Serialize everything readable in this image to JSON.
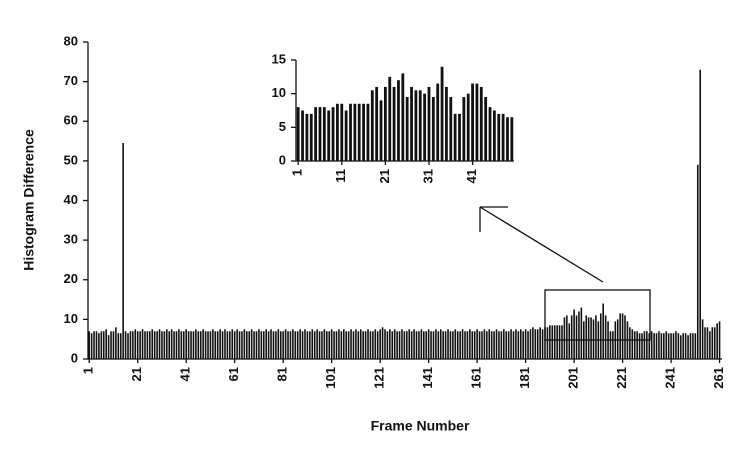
{
  "chart_data": [
    {
      "type": "bar",
      "xlabel": "Frame Number",
      "ylabel": "Histogram Difference",
      "color": "#111111",
      "xlim": [
        0.5,
        262
      ],
      "ylim": [
        0,
        80
      ],
      "xticks": [
        1,
        21,
        41,
        61,
        81,
        101,
        121,
        141,
        161,
        181,
        201,
        221,
        241,
        261
      ],
      "yticks": [
        0,
        10,
        20,
        30,
        40,
        50,
        60,
        70,
        80
      ],
      "x": [
        1,
        2,
        3,
        4,
        5,
        6,
        7,
        8,
        9,
        10,
        11,
        12,
        13,
        14,
        15,
        16,
        17,
        18,
        19,
        20,
        21,
        22,
        23,
        24,
        25,
        26,
        27,
        28,
        29,
        30,
        31,
        32,
        33,
        34,
        35,
        36,
        37,
        38,
        39,
        40,
        41,
        42,
        43,
        44,
        45,
        46,
        47,
        48,
        49,
        50,
        51,
        52,
        53,
        54,
        55,
        56,
        57,
        58,
        59,
        60,
        61,
        62,
        63,
        64,
        65,
        66,
        67,
        68,
        69,
        70,
        71,
        72,
        73,
        74,
        75,
        76,
        77,
        78,
        79,
        80,
        81,
        82,
        83,
        84,
        85,
        86,
        87,
        88,
        89,
        90,
        91,
        92,
        93,
        94,
        95,
        96,
        97,
        98,
        99,
        100,
        101,
        102,
        103,
        104,
        105,
        106,
        107,
        108,
        109,
        110,
        111,
        112,
        113,
        114,
        115,
        116,
        117,
        118,
        119,
        120,
        121,
        122,
        123,
        124,
        125,
        126,
        127,
        128,
        129,
        130,
        131,
        132,
        133,
        134,
        135,
        136,
        137,
        138,
        139,
        140,
        141,
        142,
        143,
        144,
        145,
        146,
        147,
        148,
        149,
        150,
        151,
        152,
        153,
        154,
        155,
        156,
        157,
        158,
        159,
        160,
        161,
        162,
        163,
        164,
        165,
        166,
        167,
        168,
        169,
        170,
        171,
        172,
        173,
        174,
        175,
        176,
        177,
        178,
        179,
        180,
        181,
        182,
        183,
        184,
        185,
        186,
        187,
        188,
        189,
        190,
        191,
        192,
        193,
        194,
        195,
        196,
        197,
        198,
        199,
        200,
        201,
        202,
        203,
        204,
        205,
        206,
        207,
        208,
        209,
        210,
        211,
        212,
        213,
        214,
        215,
        216,
        217,
        218,
        219,
        220,
        221,
        222,
        223,
        224,
        225,
        226,
        227,
        228,
        229,
        230,
        231,
        232,
        233,
        234,
        235,
        236,
        237,
        238,
        239,
        240,
        241,
        242,
        243,
        244,
        245,
        246,
        247,
        248,
        249,
        250,
        251,
        252,
        253,
        254,
        255,
        256,
        257,
        258,
        259,
        260,
        261
      ],
      "values": [
        7,
        6.5,
        7,
        7,
        6.5,
        7,
        7,
        7.5,
        6,
        7,
        7,
        8,
        6.5,
        6.5,
        54.5,
        7,
        6.5,
        7,
        7,
        7.5,
        7,
        7,
        7.5,
        7,
        7,
        7,
        7.5,
        7,
        7,
        7.5,
        7,
        7,
        7.5,
        7,
        7.5,
        7,
        7,
        7.5,
        7,
        7,
        7.5,
        7,
        7,
        7,
        7.5,
        7,
        7,
        7.5,
        7,
        7,
        7,
        7.5,
        7,
        7,
        7.5,
        7,
        7.5,
        7,
        7,
        7.5,
        7,
        7.5,
        7,
        7,
        7.5,
        7,
        7,
        7.5,
        7,
        7,
        7.5,
        7,
        7,
        7.5,
        7,
        7.5,
        7,
        7,
        7.5,
        7,
        7,
        7.5,
        7,
        7,
        7.5,
        7,
        7,
        7.5,
        7,
        7.5,
        7,
        7,
        7.5,
        7,
        7.5,
        7,
        7,
        7.5,
        7,
        7,
        7.5,
        7,
        7,
        7.5,
        7,
        7.5,
        7,
        7,
        7.5,
        7,
        7.5,
        7,
        7.5,
        7,
        7,
        7.5,
        7,
        7,
        7.5,
        7,
        7.5,
        8,
        7.5,
        7,
        7.5,
        7,
        7.5,
        7,
        7,
        7.5,
        7,
        7,
        7.5,
        7,
        7.5,
        7,
        7,
        7.5,
        7,
        7,
        7.5,
        7,
        7,
        7.5,
        7,
        7.5,
        7,
        7,
        7.5,
        7,
        7,
        7.5,
        7,
        7,
        7.5,
        7,
        7,
        7.5,
        7,
        7,
        7.5,
        7,
        7,
        7.5,
        7,
        7.5,
        7,
        7,
        7.5,
        7,
        7,
        7.5,
        7,
        7,
        7.5,
        7,
        7.5,
        7,
        7.5,
        7,
        7.5,
        7,
        7.5,
        8,
        7.5,
        7.5,
        8,
        7.5,
        8,
        8,
        8.5,
        8.5,
        8.5,
        8.5,
        8.5,
        8.5,
        10.5,
        11,
        9,
        11,
        12.5,
        11,
        12,
        13,
        9.5,
        11,
        10.5,
        10.5,
        10,
        11,
        9.5,
        11.5,
        14,
        11,
        9.5,
        7,
        7,
        9.5,
        10,
        11.5,
        11.5,
        11,
        9.5,
        8,
        7.5,
        7,
        7,
        6.5,
        6.5,
        7,
        7,
        6.5,
        7,
        6.5,
        6.5,
        7,
        6.5,
        6.5,
        7,
        6.5,
        6.5,
        6.5,
        7,
        6.5,
        6,
        6.5,
        6.5,
        6,
        6.5,
        6.5,
        6.5,
        49,
        73,
        10,
        8,
        8,
        7,
        8,
        8,
        9,
        9.5
      ]
    },
    {
      "type": "bar",
      "color": "#111111",
      "xlim": [
        0.5,
        50.5
      ],
      "ylim": [
        0,
        15
      ],
      "xticks": [
        1,
        11,
        21,
        31,
        41
      ],
      "yticks": [
        0,
        5,
        10,
        15
      ],
      "x": [
        1,
        2,
        3,
        4,
        5,
        6,
        7,
        8,
        9,
        10,
        11,
        12,
        13,
        14,
        15,
        16,
        17,
        18,
        19,
        20,
        21,
        22,
        23,
        24,
        25,
        26,
        27,
        28,
        29,
        30,
        31,
        32,
        33,
        34,
        35,
        36,
        37,
        38,
        39,
        40,
        41,
        42,
        43,
        44,
        45,
        46,
        47,
        48,
        49,
        50
      ],
      "values": [
        8,
        7.5,
        7,
        7,
        8,
        8,
        8,
        7.5,
        8,
        8.5,
        8.5,
        7.5,
        8.5,
        8.5,
        8.5,
        8.5,
        8.5,
        10.5,
        11,
        9,
        11,
        12.5,
        11,
        12,
        13,
        9.5,
        11,
        10.5,
        10.5,
        10,
        11,
        9.5,
        11.5,
        14,
        11,
        9.5,
        7,
        7,
        9.5,
        10,
        11.5,
        11.5,
        11,
        9.5,
        8,
        7.5,
        7,
        7,
        6.5,
        6.5
      ]
    }
  ]
}
